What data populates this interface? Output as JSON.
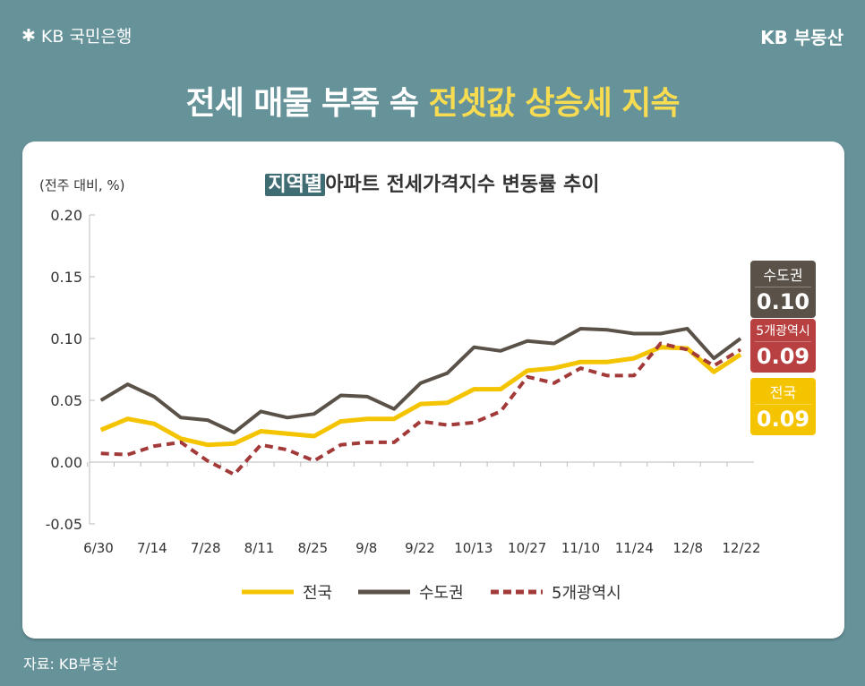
{
  "header": {
    "bank_logo": "KB 국민은행",
    "brand": "KB 부동산"
  },
  "headline": {
    "part1": "전세 매물 부족 속 ",
    "part2": "전셋값 상승세 지속"
  },
  "source": "자료: KB부동산",
  "chart_data": {
    "type": "line",
    "title_tag": "지역별",
    "title_rest": "아파트 전세가격지수 변동률 추이",
    "ylabel": "(전주 대비, %)",
    "ylim": [
      -0.05,
      0.2
    ],
    "yticks": [
      "0.20",
      "0.15",
      "0.10",
      "0.05",
      "0.00",
      "-0.05"
    ],
    "ytick_values": [
      0.2,
      0.15,
      0.1,
      0.05,
      0.0,
      -0.05
    ],
    "x_tick_labels": [
      "6/30",
      "7/14",
      "7/28",
      "8/11",
      "8/25",
      "9/8",
      "9/22",
      "10/13",
      "10/27",
      "11/10",
      "11/24",
      "12/8",
      "12/22"
    ],
    "grid": false,
    "legend": "bottom",
    "series": [
      {
        "name": "전국",
        "color": "#f5c400",
        "dash": false,
        "values": [
          0.026,
          0.035,
          0.031,
          0.019,
          0.014,
          0.015,
          0.025,
          0.023,
          0.021,
          0.033,
          0.035,
          0.035,
          0.047,
          0.048,
          0.059,
          0.059,
          0.074,
          0.076,
          0.081,
          0.081,
          0.084,
          0.093,
          0.092,
          0.073,
          0.087
        ],
        "latest_label": "0.09"
      },
      {
        "name": "수도권",
        "color": "#5a5249",
        "dash": false,
        "values": [
          0.05,
          0.063,
          0.053,
          0.036,
          0.034,
          0.024,
          0.041,
          0.036,
          0.039,
          0.054,
          0.053,
          0.043,
          0.064,
          0.072,
          0.093,
          0.09,
          0.098,
          0.096,
          0.108,
          0.107,
          0.104,
          0.104,
          0.108,
          0.084,
          0.1
        ],
        "latest_label": "0.10"
      },
      {
        "name": "5개광역시",
        "color": "#a33a3a",
        "dash": true,
        "values": [
          0.007,
          0.006,
          0.013,
          0.016,
          0.001,
          -0.01,
          0.014,
          0.01,
          0.001,
          0.014,
          0.016,
          0.016,
          0.033,
          0.03,
          0.032,
          0.041,
          0.069,
          0.064,
          0.076,
          0.07,
          0.07,
          0.096,
          0.091,
          0.078,
          0.091
        ],
        "latest_label": "0.09"
      }
    ]
  },
  "badge_colors": {
    "수도권": "#5a5249",
    "5개광역시": "#b84040",
    "전국": "#f5c400"
  }
}
